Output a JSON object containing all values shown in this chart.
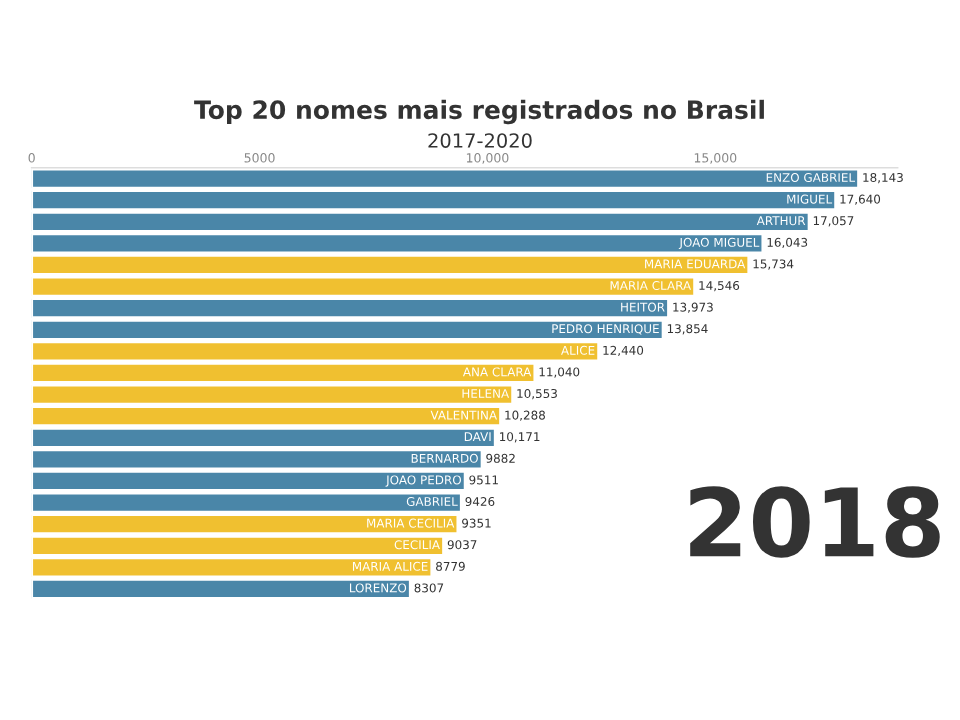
{
  "chart_data": {
    "type": "bar",
    "orientation": "horizontal",
    "title": "Top 20 nomes mais registrados no Brasil",
    "subtitle": "2017-2020",
    "categories": [
      "ENZO GABRIEL",
      "MIGUEL",
      "ARTHUR",
      "JOAO MIGUEL",
      "MARIA EDUARDA",
      "MARIA CLARA",
      "HEITOR",
      "PEDRO HENRIQUE",
      "ALICE",
      "ANA CLARA",
      "HELENA",
      "VALENTINA",
      "DAVI",
      "BERNARDO",
      "JOAO PEDRO",
      "GABRIEL",
      "MARIA CECILIA",
      "CECILIA",
      "MARIA ALICE",
      "LORENZO"
    ],
    "values": [
      18143,
      17640,
      17057,
      16043,
      15734,
      14546,
      13973,
      13854,
      12440,
      11040,
      10553,
      10288,
      10171,
      9882,
      9511,
      9426,
      9351,
      9037,
      8779,
      8307
    ],
    "value_labels": [
      "18,143",
      "17,640",
      "17,057",
      "16,043",
      "15,734",
      "14,546",
      "13,973",
      "13,854",
      "12,440",
      "11,040",
      "10,553",
      "10,288",
      "10,171",
      "9882",
      "9511",
      "9426",
      "9351",
      "9037",
      "8779",
      "8307"
    ],
    "colors": [
      "#4a86a8",
      "#4a86a8",
      "#4a86a8",
      "#4a86a8",
      "#f0c030",
      "#f0c030",
      "#4a86a8",
      "#4a86a8",
      "#f0c030",
      "#f0c030",
      "#f0c030",
      "#f0c030",
      "#4a86a8",
      "#4a86a8",
      "#4a86a8",
      "#4a86a8",
      "#f0c030",
      "#f0c030",
      "#f0c030",
      "#4a86a8"
    ],
    "xlim": [
      0,
      19000
    ],
    "xticks": [
      0,
      5000,
      {
        "value": 10000,
        "label": "10,000"
      },
      {
        "value": 15000,
        "label": "15,000"
      }
    ],
    "grid": false,
    "legend": false,
    "annotations": [
      "2018"
    ]
  }
}
